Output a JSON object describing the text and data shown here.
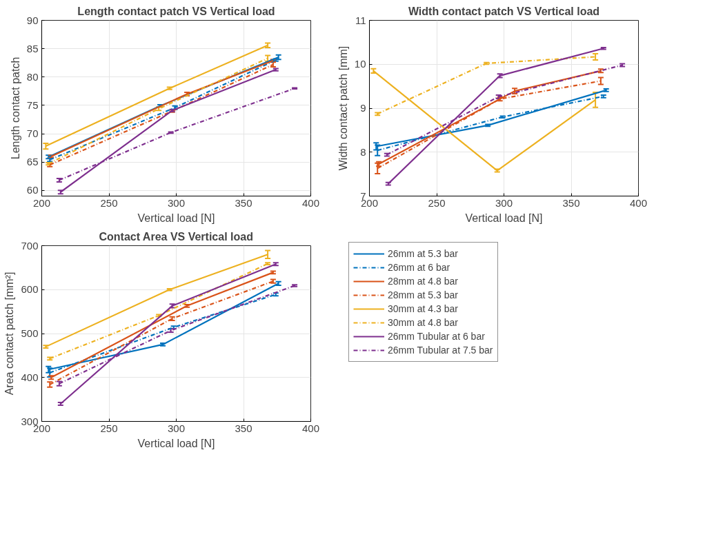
{
  "chart_data": [
    {
      "type": "line",
      "title": "Length contact patch VS Vertical load",
      "xlabel": "Vertical load [N]",
      "ylabel": "Length contact patch",
      "xlim": [
        200,
        400
      ],
      "xticks": [
        200,
        250,
        300,
        350,
        400
      ],
      "ylim": [
        59,
        90
      ],
      "yticks": [
        60,
        65,
        70,
        75,
        80,
        85,
        90
      ],
      "grid": true,
      "marker": "none",
      "series": [
        {
          "color": "#0072bd",
          "line_style": "solid",
          "x": [
            205,
            288,
            376
          ],
          "values": [
            65.9,
            74.9,
            83.5
          ],
          "errors": [
            0.3,
            0.2,
            0.4
          ]
        },
        {
          "color": "#0072bd",
          "line_style": "dashed",
          "x": [
            206,
            299,
            374
          ],
          "values": [
            65.4,
            74.6,
            83.0
          ],
          "errors": [
            0.3,
            0.3,
            0.2
          ]
        },
        {
          "color": "#d95319",
          "line_style": "solid",
          "x": [
            207,
            308,
            372
          ],
          "values": [
            66.0,
            77.0,
            82.9
          ],
          "errors": [
            0.2,
            0.3,
            0.2
          ]
        },
        {
          "color": "#d95319",
          "line_style": "dashed",
          "x": [
            206,
            297,
            372
          ],
          "values": [
            64.5,
            74.0,
            82.2
          ],
          "errors": [
            0.3,
            0.2,
            0.4
          ]
        },
        {
          "color": "#edb120",
          "line_style": "solid",
          "x": [
            203,
            295,
            368
          ],
          "values": [
            67.8,
            78.0,
            85.6
          ],
          "errors": [
            0.5,
            0.2,
            0.4
          ]
        },
        {
          "color": "#edb120",
          "line_style": "dashed",
          "x": [
            205,
            287,
            368
          ],
          "values": [
            64.7,
            74.4,
            83.3
          ],
          "errors": [
            0.2,
            0.3,
            0.5
          ]
        },
        {
          "color": "#7e2f8e",
          "line_style": "solid",
          "x": [
            214,
            297,
            374
          ],
          "values": [
            59.7,
            74.1,
            81.3
          ],
          "errors": [
            0.3,
            0.2,
            0.2
          ]
        },
        {
          "color": "#7e2f8e",
          "line_style": "dashed",
          "x": [
            213,
            296,
            388
          ],
          "values": [
            61.8,
            70.2,
            78.0
          ],
          "errors": [
            0.3,
            0.1,
            0.1
          ]
        }
      ]
    },
    {
      "type": "line",
      "title": "Width contact patch VS Vertical load",
      "xlabel": "Vertical load [N]",
      "ylabel": "Width contact patch [mm]",
      "xlim": [
        200,
        400
      ],
      "xticks": [
        200,
        250,
        300,
        350,
        400
      ],
      "ylim": [
        7,
        11
      ],
      "yticks": [
        7,
        8,
        9,
        10,
        11
      ],
      "grid": true,
      "marker": "none",
      "series": [
        {
          "color": "#0072bd",
          "line_style": "solid",
          "x": [
            205,
            288,
            376
          ],
          "values": [
            8.13,
            8.61,
            9.41
          ],
          "errors": [
            0.08,
            0.02,
            0.03
          ]
        },
        {
          "color": "#0072bd",
          "line_style": "dashed",
          "x": [
            206,
            299,
            374
          ],
          "values": [
            8.04,
            8.8,
            9.27
          ],
          "errors": [
            0.12,
            0.02,
            0.03
          ]
        },
        {
          "color": "#d95319",
          "line_style": "solid",
          "x": [
            207,
            308,
            372
          ],
          "values": [
            7.73,
            9.39,
            9.85
          ],
          "errors": [
            0.05,
            0.06,
            0.04
          ]
        },
        {
          "color": "#d95319",
          "line_style": "dashed",
          "x": [
            206,
            297,
            372
          ],
          "values": [
            7.63,
            9.21,
            9.62
          ],
          "errors": [
            0.12,
            0.04,
            0.08
          ]
        },
        {
          "color": "#edb120",
          "line_style": "solid",
          "x": [
            203,
            295,
            368
          ],
          "values": [
            9.85,
            7.58,
            9.19
          ],
          "errors": [
            0.05,
            0.03,
            0.17
          ]
        },
        {
          "color": "#edb120",
          "line_style": "dashed",
          "x": [
            206,
            287,
            368
          ],
          "values": [
            8.87,
            10.02,
            10.17
          ],
          "errors": [
            0.03,
            0.02,
            0.07
          ]
        },
        {
          "color": "#7e2f8e",
          "line_style": "solid",
          "x": [
            214,
            297,
            374
          ],
          "values": [
            7.28,
            9.74,
            10.36
          ],
          "errors": [
            0.03,
            0.04,
            0.02
          ]
        },
        {
          "color": "#7e2f8e",
          "line_style": "dashed",
          "x": [
            213,
            296,
            388
          ],
          "values": [
            7.94,
            9.26,
            9.98
          ],
          "errors": [
            0.03,
            0.04,
            0.03
          ]
        }
      ]
    },
    {
      "type": "line",
      "title": "Contact Area VS Vertical load",
      "xlabel": "Vertical load [N]",
      "ylabel": "Area contact patch [mm²]",
      "xlim": [
        200,
        400
      ],
      "xticks": [
        200,
        250,
        300,
        350,
        400
      ],
      "ylim": [
        300,
        700
      ],
      "yticks": [
        300,
        400,
        500,
        600,
        700
      ],
      "grid": true,
      "legend": "right",
      "marker": "none",
      "series": [
        {
          "name": "26mm at 5.3 bar",
          "color": "#0072bd",
          "line_style": "solid",
          "x": [
            205,
            290,
            376
          ],
          "values": [
            418,
            475,
            614
          ],
          "errors": [
            7,
            3,
            4
          ]
        },
        {
          "name": "26mm at 6 bar",
          "color": "#0072bd",
          "line_style": "dashed",
          "x": [
            206,
            298,
            374
          ],
          "values": [
            411,
            514,
            589
          ],
          "errors": [
            10,
            3,
            3
          ]
        },
        {
          "name": "28mm at 4.8 bar",
          "color": "#d95319",
          "line_style": "solid",
          "x": [
            207,
            308,
            372
          ],
          "values": [
            400,
            563,
            639
          ],
          "errors": [
            4,
            3,
            3
          ]
        },
        {
          "name": "28mm at 5.3 bar",
          "color": "#d95319",
          "line_style": "dashed",
          "x": [
            206,
            297,
            372
          ],
          "values": [
            384,
            534,
            619
          ],
          "errors": [
            6,
            4,
            4
          ]
        },
        {
          "name": "30mm at 4.3 bar",
          "color": "#edb120",
          "line_style": "solid",
          "x": [
            203,
            295,
            368
          ],
          "values": [
            470,
            600,
            680
          ],
          "errors": [
            3,
            2,
            9
          ]
        },
        {
          "name": "30mm at 4.8 bar",
          "color": "#edb120",
          "line_style": "dashed",
          "x": [
            206,
            287,
            368
          ],
          "values": [
            443,
            541,
            659
          ],
          "errors": [
            3,
            2,
            2
          ]
        },
        {
          "name": "26mm Tubular at 6 bar",
          "color": "#7e2f8e",
          "line_style": "solid",
          "x": [
            214,
            297,
            374
          ],
          "values": [
            340,
            563,
            658
          ],
          "errors": [
            3,
            4,
            3
          ]
        },
        {
          "name": "26mm Tubular at 7.5 bar",
          "color": "#7e2f8e",
          "line_style": "dashed",
          "x": [
            213,
            296,
            388
          ],
          "values": [
            386,
            507,
            609
          ],
          "errors": [
            5,
            4,
            2
          ]
        }
      ]
    }
  ]
}
